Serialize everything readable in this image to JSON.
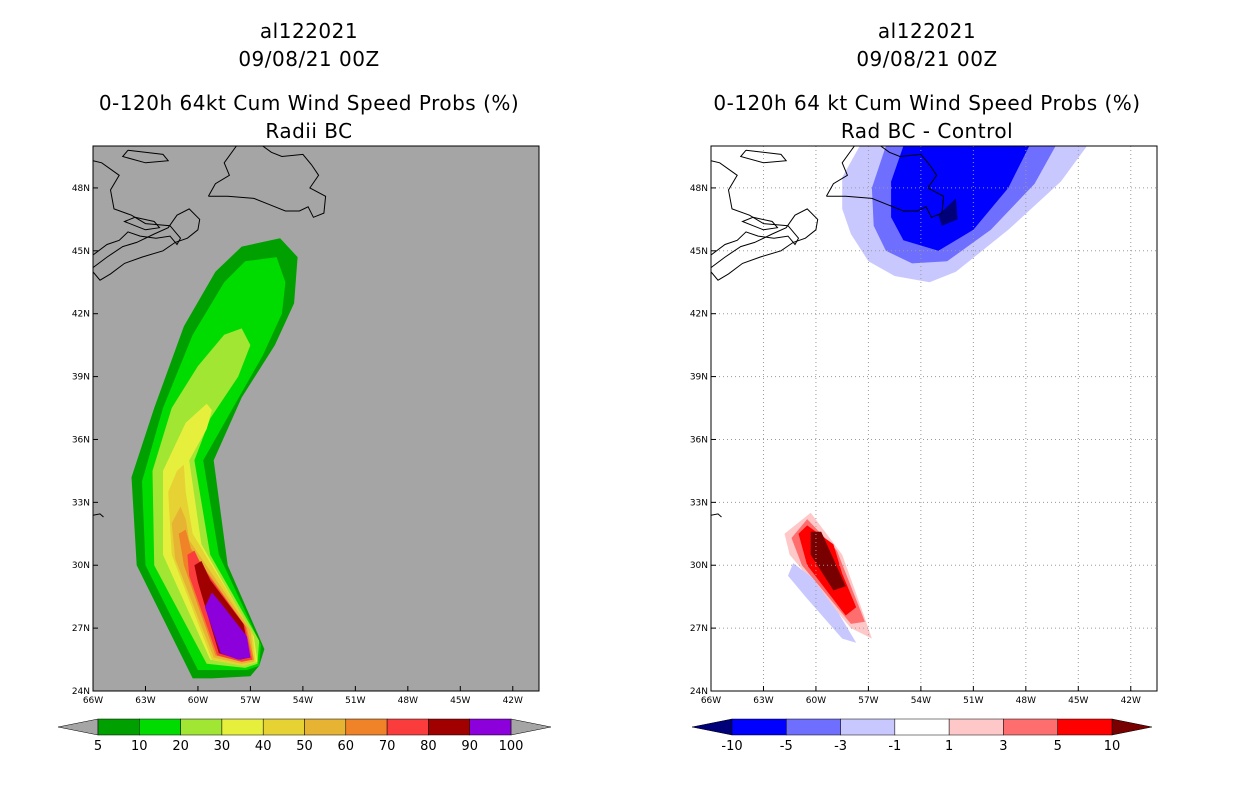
{
  "chart_data": [
    {
      "type": "contour-map",
      "storm_id": "al122021",
      "date": "09/08/21 00Z",
      "title": "0-120h 64kt Cum Wind Speed Probs (%)",
      "subtitle": "Radii BC",
      "background_color": "#a5a5a5",
      "land_outline_color": "#000000",
      "grid": false,
      "lon_range": [
        -66,
        -40.5
      ],
      "lat_range": [
        24,
        50
      ],
      "x_ticks": [
        -66,
        -63,
        -60,
        -57,
        -54,
        -51,
        -48,
        -45,
        -42
      ],
      "x_tick_labels": [
        "66W",
        "63W",
        "60W",
        "57W",
        "54W",
        "51W",
        "48W",
        "45W",
        "42W"
      ],
      "y_ticks": [
        24,
        27,
        30,
        33,
        36,
        39,
        42,
        45,
        48
      ],
      "y_tick_labels": [
        "24N",
        "27N",
        "30N",
        "33N",
        "36N",
        "39N",
        "42N",
        "45N",
        "48N"
      ],
      "colorbar": {
        "labels": [
          "5",
          "10",
          "20",
          "30",
          "40",
          "50",
          "60",
          "70",
          "80",
          "90",
          "100"
        ],
        "colors": [
          "#00a000",
          "#00dc00",
          "#a0e632",
          "#e6f03c",
          "#e6d232",
          "#e6b432",
          "#f08228",
          "#fa3c3c",
          "#a00000",
          "#8c00dc"
        ],
        "extend_color": "#a5a5a5"
      },
      "contours": [
        {
          "level": 5,
          "color": "#00a000",
          "points": [
            [
              -60.3,
              24.6
            ],
            [
              -63.5,
              30.0
            ],
            [
              -63.8,
              34.2
            ],
            [
              -62.5,
              37.5
            ],
            [
              -60.8,
              41.4
            ],
            [
              -59.0,
              44.0
            ],
            [
              -57.5,
              45.2
            ],
            [
              -55.3,
              45.6
            ],
            [
              -54.3,
              44.7
            ],
            [
              -54.5,
              42.5
            ],
            [
              -55.6,
              40.5
            ],
            [
              -57.5,
              38.0
            ],
            [
              -59.1,
              35.0
            ],
            [
              -58.3,
              30.0
            ],
            [
              -56.2,
              26.0
            ],
            [
              -56.5,
              25.2
            ],
            [
              -57.0,
              24.7
            ],
            [
              -59.2,
              24.6
            ]
          ]
        },
        {
          "level": 10,
          "color": "#00dc00",
          "points": [
            [
              -60.0,
              25.0
            ],
            [
              -63.0,
              30.0
            ],
            [
              -63.2,
              34.0
            ],
            [
              -62.0,
              37.5
            ],
            [
              -60.3,
              41.0
            ],
            [
              -58.5,
              43.5
            ],
            [
              -57.3,
              44.5
            ],
            [
              -55.5,
              44.7
            ],
            [
              -55.0,
              43.5
            ],
            [
              -55.2,
              42.0
            ],
            [
              -56.3,
              40.0
            ],
            [
              -58.0,
              37.5
            ],
            [
              -59.7,
              35.0
            ],
            [
              -58.8,
              30.5
            ],
            [
              -56.4,
              26.2
            ],
            [
              -56.5,
              25.2
            ],
            [
              -57.2,
              25.0
            ]
          ]
        },
        {
          "level": 20,
          "color": "#a0e632",
          "points": [
            [
              -59.5,
              25.3
            ],
            [
              -62.5,
              30.0
            ],
            [
              -62.6,
              34.5
            ],
            [
              -61.5,
              37.5
            ],
            [
              -60.0,
              39.5
            ],
            [
              -58.5,
              41.0
            ],
            [
              -57.5,
              41.3
            ],
            [
              -57.0,
              40.5
            ],
            [
              -57.7,
              39.0
            ],
            [
              -59.3,
              37.0
            ],
            [
              -60.2,
              35.0
            ],
            [
              -59.3,
              30.5
            ],
            [
              -56.5,
              26.4
            ],
            [
              -56.6,
              25.3
            ],
            [
              -57.3,
              25.1
            ]
          ]
        },
        {
          "level": 30,
          "color": "#e6f03c",
          "points": [
            [
              -59.3,
              25.5
            ],
            [
              -62.0,
              30.5
            ],
            [
              -62.0,
              34.5
            ],
            [
              -60.7,
              36.8
            ],
            [
              -59.5,
              37.7
            ],
            [
              -59.2,
              37.4
            ],
            [
              -59.5,
              36.5
            ],
            [
              -60.5,
              35.0
            ],
            [
              -59.8,
              31.0
            ],
            [
              -56.8,
              26.6
            ],
            [
              -56.6,
              25.4
            ],
            [
              -57.4,
              25.2
            ]
          ]
        },
        {
          "level": 40,
          "color": "#e6d232",
          "points": [
            [
              -59.2,
              25.5
            ],
            [
              -61.5,
              30.5
            ],
            [
              -61.7,
              33.5
            ],
            [
              -61.2,
              34.5
            ],
            [
              -60.8,
              34.8
            ],
            [
              -60.7,
              33.5
            ],
            [
              -60.3,
              31.5
            ],
            [
              -56.9,
              26.8
            ],
            [
              -56.7,
              25.4
            ],
            [
              -57.4,
              25.2
            ]
          ]
        },
        {
          "level": 50,
          "color": "#e6b432",
          "points": [
            [
              -59.1,
              25.6
            ],
            [
              -61.3,
              30.3
            ],
            [
              -61.5,
              32.0
            ],
            [
              -61.0,
              32.8
            ],
            [
              -60.7,
              32.2
            ],
            [
              -60.5,
              31.2
            ],
            [
              -57.0,
              26.9
            ],
            [
              -56.8,
              25.4
            ],
            [
              -57.5,
              25.3
            ]
          ]
        },
        {
          "level": 60,
          "color": "#f08228",
          "points": [
            [
              -59.0,
              25.7
            ],
            [
              -60.8,
              30.0
            ],
            [
              -61.1,
              31.5
            ],
            [
              -60.7,
              31.7
            ],
            [
              -60.4,
              30.8
            ],
            [
              -57.2,
              27.0
            ],
            [
              -56.8,
              25.5
            ],
            [
              -57.5,
              25.4
            ]
          ]
        },
        {
          "level": 70,
          "color": "#fa3c3c",
          "points": [
            [
              -58.9,
              25.7
            ],
            [
              -60.5,
              29.5
            ],
            [
              -60.6,
              30.5
            ],
            [
              -60.2,
              30.7
            ],
            [
              -59.8,
              30.0
            ],
            [
              -57.3,
              27.1
            ],
            [
              -56.9,
              25.5
            ],
            [
              -57.5,
              25.4
            ]
          ]
        },
        {
          "level": 80,
          "color": "#a00000",
          "points": [
            [
              -58.8,
              25.8
            ],
            [
              -60.0,
              29.2
            ],
            [
              -60.2,
              30.0
            ],
            [
              -59.8,
              30.2
            ],
            [
              -59.3,
              29.3
            ],
            [
              -57.4,
              27.2
            ],
            [
              -57.0,
              25.6
            ],
            [
              -57.6,
              25.5
            ]
          ]
        },
        {
          "level": 90,
          "color": "#8c00dc",
          "points": [
            [
              -58.7,
              25.8
            ],
            [
              -59.6,
              28.0
            ],
            [
              -59.2,
              28.7
            ],
            [
              -58.7,
              28.2
            ],
            [
              -57.2,
              26.6
            ],
            [
              -57.0,
              25.6
            ],
            [
              -57.7,
              25.5
            ]
          ]
        }
      ]
    },
    {
      "type": "contour-map",
      "storm_id": "al122021",
      "date": "09/08/21 00Z",
      "title": "0-120h 64 kt Cum Wind Speed Probs (%)",
      "subtitle": "Rad BC - Control",
      "background_color": "#ffffff",
      "land_outline_color": "#000000",
      "grid": true,
      "lon_range": [
        -66,
        -40.5
      ],
      "lat_range": [
        24,
        50
      ],
      "x_ticks": [
        -66,
        -63,
        -60,
        -57,
        -54,
        -51,
        -48,
        -45,
        -42
      ],
      "x_tick_labels": [
        "66W",
        "63W",
        "60W",
        "57W",
        "54W",
        "51W",
        "48W",
        "45W",
        "42W"
      ],
      "y_ticks": [
        24,
        27,
        30,
        33,
        36,
        39,
        42,
        45,
        48
      ],
      "y_tick_labels": [
        "24N",
        "27N",
        "30N",
        "33N",
        "36N",
        "39N",
        "42N",
        "45N",
        "48N"
      ],
      "colorbar": {
        "labels": [
          "-10",
          "-5",
          "-3",
          "-1",
          "1",
          "3",
          "5",
          "10"
        ],
        "colors": [
          "#0000ff",
          "#6e6eff",
          "#c8c8ff",
          "#ffffff",
          "#ffc8c8",
          "#ff6e6e",
          "#ff0000"
        ],
        "extend_low_color": "#000078",
        "extend_high_color": "#780000"
      },
      "contours": [
        {
          "level": -1,
          "color": "#c8c8ff",
          "points": [
            [
              -57.5,
              50.0
            ],
            [
              -44.5,
              50.0
            ],
            [
              -46.0,
              48.3
            ],
            [
              -49.0,
              46.0
            ],
            [
              -52.0,
              44.0
            ],
            [
              -53.5,
              43.5
            ],
            [
              -55.5,
              43.8
            ],
            [
              -57.0,
              44.5
            ],
            [
              -58.0,
              45.8
            ],
            [
              -58.5,
              47.0
            ],
            [
              -58.5,
              48.5
            ]
          ]
        },
        {
          "level": -3,
          "color": "#6e6eff",
          "points": [
            [
              -56.0,
              50.0
            ],
            [
              -46.3,
              50.0
            ],
            [
              -47.5,
              48.2
            ],
            [
              -50.0,
              46.0
            ],
            [
              -52.5,
              44.5
            ],
            [
              -54.5,
              44.4
            ],
            [
              -56.0,
              45.0
            ],
            [
              -56.7,
              46.2
            ],
            [
              -56.8,
              48.0
            ]
          ]
        },
        {
          "level": -5,
          "color": "#0000ff",
          "points": [
            [
              -55.0,
              50.0
            ],
            [
              -47.8,
              50.0
            ],
            [
              -49.0,
              48.0
            ],
            [
              -51.0,
              46.0
            ],
            [
              -53.0,
              45.0
            ],
            [
              -55.0,
              45.5
            ],
            [
              -55.7,
              46.6
            ],
            [
              -55.7,
              48.3
            ]
          ]
        },
        {
          "level": -10,
          "color": "#000078",
          "points": [
            [
              -52.0,
              47.5
            ],
            [
              -51.9,
              46.5
            ],
            [
              -52.8,
              46.2
            ],
            [
              -53.0,
              46.7
            ]
          ]
        },
        {
          "level": 1,
          "color": "#ffc8c8",
          "points": [
            [
              -60.3,
              32.5
            ],
            [
              -61.8,
              31.5
            ],
            [
              -61.5,
              30.5
            ],
            [
              -58.0,
              27.0
            ],
            [
              -56.8,
              26.5
            ],
            [
              -57.3,
              27.7
            ],
            [
              -58.5,
              30.5
            ]
          ]
        },
        {
          "level": 3,
          "color": "#ff6e6e",
          "points": [
            [
              -60.5,
              32.2
            ],
            [
              -61.4,
              31.3
            ],
            [
              -60.8,
              30.0
            ],
            [
              -58.0,
              27.2
            ],
            [
              -57.2,
              27.3
            ],
            [
              -58.0,
              29.0
            ],
            [
              -58.8,
              30.7
            ]
          ]
        },
        {
          "level": 5,
          "color": "#ff0000",
          "points": [
            [
              -60.5,
              31.9
            ],
            [
              -61.0,
              31.5
            ],
            [
              -60.5,
              30.0
            ],
            [
              -58.3,
              27.6
            ],
            [
              -57.7,
              28.0
            ],
            [
              -58.5,
              29.6
            ],
            [
              -59.0,
              31.0
            ]
          ]
        },
        {
          "level": 10,
          "color": "#780000",
          "points": [
            [
              -60.3,
              31.6
            ],
            [
              -60.3,
              30.5
            ],
            [
              -59.0,
              28.8
            ],
            [
              -58.3,
              29.0
            ],
            [
              -59.0,
              30.3
            ],
            [
              -59.7,
              31.6
            ]
          ]
        },
        {
          "level": -1,
          "color": "#c8c8ff",
          "points": [
            [
              -61.3,
              30.1
            ],
            [
              -61.6,
              29.5
            ],
            [
              -60.5,
              28.4
            ],
            [
              -58.5,
              26.5
            ],
            [
              -57.7,
              26.3
            ],
            [
              -58.7,
              27.7
            ],
            [
              -60.2,
              29.4
            ]
          ]
        }
      ]
    }
  ]
}
